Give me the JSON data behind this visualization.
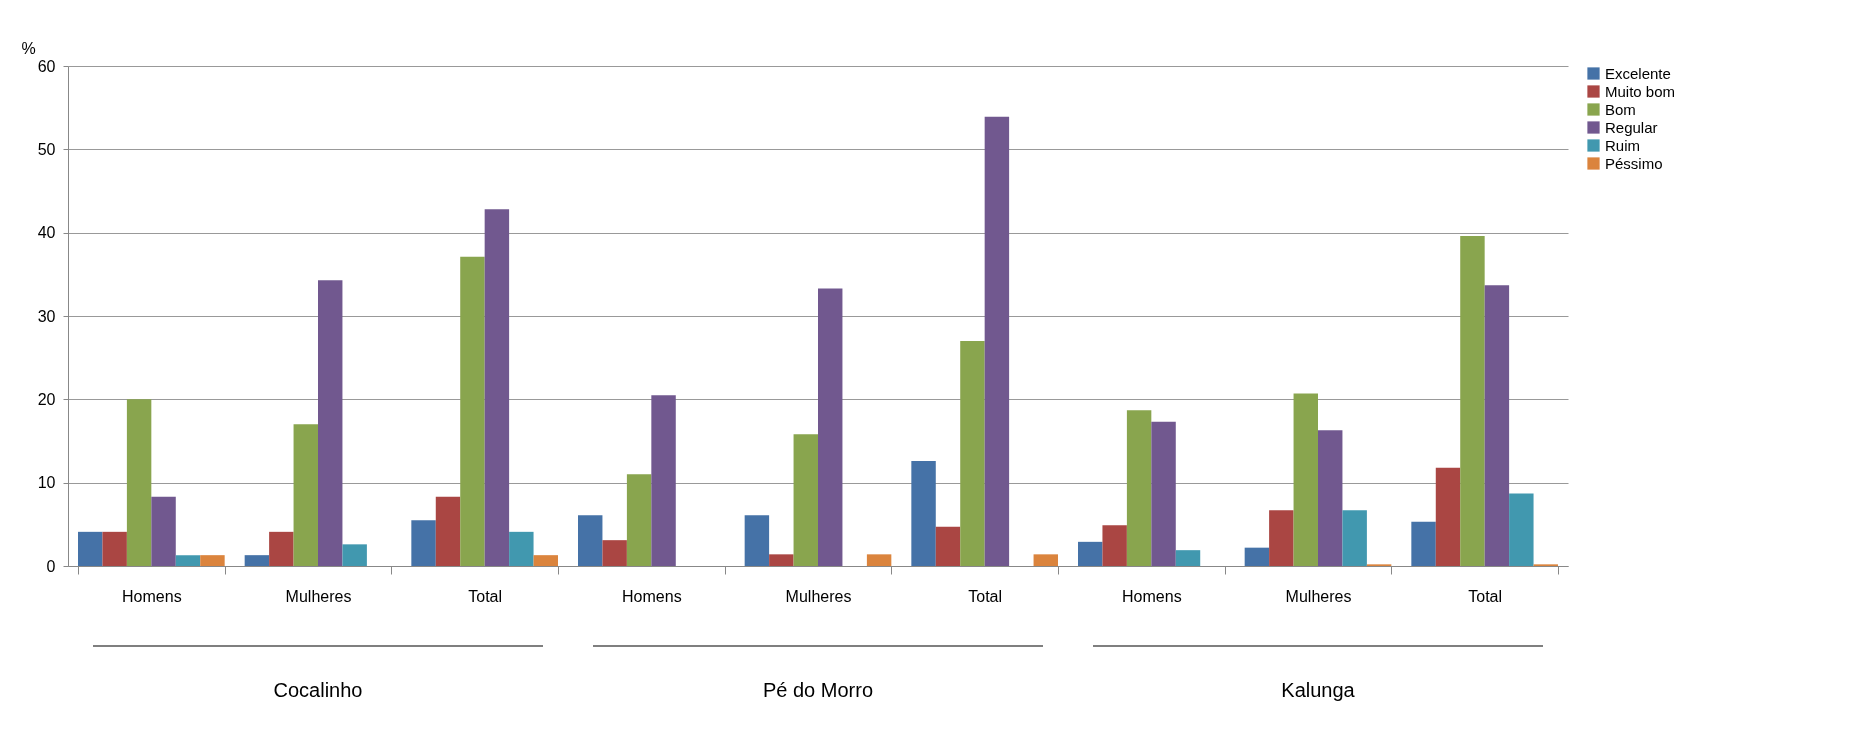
{
  "chart_data": {
    "type": "bar",
    "ylabel": "%",
    "categories": [
      "Homens",
      "Mulheres",
      "Total",
      "Homens",
      "Mulheres",
      "Total",
      "Homens",
      "Mulheres",
      "Total"
    ],
    "series": [
      {
        "name": "Excelente",
        "color": "#4572a7",
        "values": [
          4.1,
          1.3,
          5.5,
          6.1,
          6.1,
          12.6,
          2.9,
          2.2,
          5.3
        ]
      },
      {
        "name": "Muito bom",
        "color": "#aa4643",
        "values": [
          4.1,
          4.1,
          8.3,
          3.1,
          1.4,
          4.7,
          4.9,
          6.7,
          11.8
        ]
      },
      {
        "name": "Bom",
        "color": "#89a54e",
        "values": [
          20.0,
          17.0,
          37.1,
          11.0,
          15.8,
          27.0,
          18.7,
          20.7,
          39.6
        ]
      },
      {
        "name": "Regular",
        "color": "#71588f",
        "values": [
          8.3,
          34.3,
          42.8,
          20.5,
          33.3,
          53.9,
          17.3,
          16.3,
          33.7
        ]
      },
      {
        "name": "Ruim",
        "color": "#4198af",
        "values": [
          1.3,
          2.6,
          4.1,
          0,
          0,
          0,
          1.9,
          6.7,
          8.7
        ]
      },
      {
        "name": "Péssimo",
        "color": "#db843d",
        "values": [
          1.3,
          0,
          1.3,
          0,
          1.4,
          1.4,
          0,
          0.2,
          0.2
        ]
      }
    ],
    "ylim": [
      0,
      60
    ],
    "yticks": [
      0,
      10,
      20,
      30,
      40,
      50,
      60
    ],
    "grid": "y",
    "legend": "right",
    "annotations": [
      "Cocalinho",
      "Pé do Morro",
      "Kalunga"
    ]
  }
}
